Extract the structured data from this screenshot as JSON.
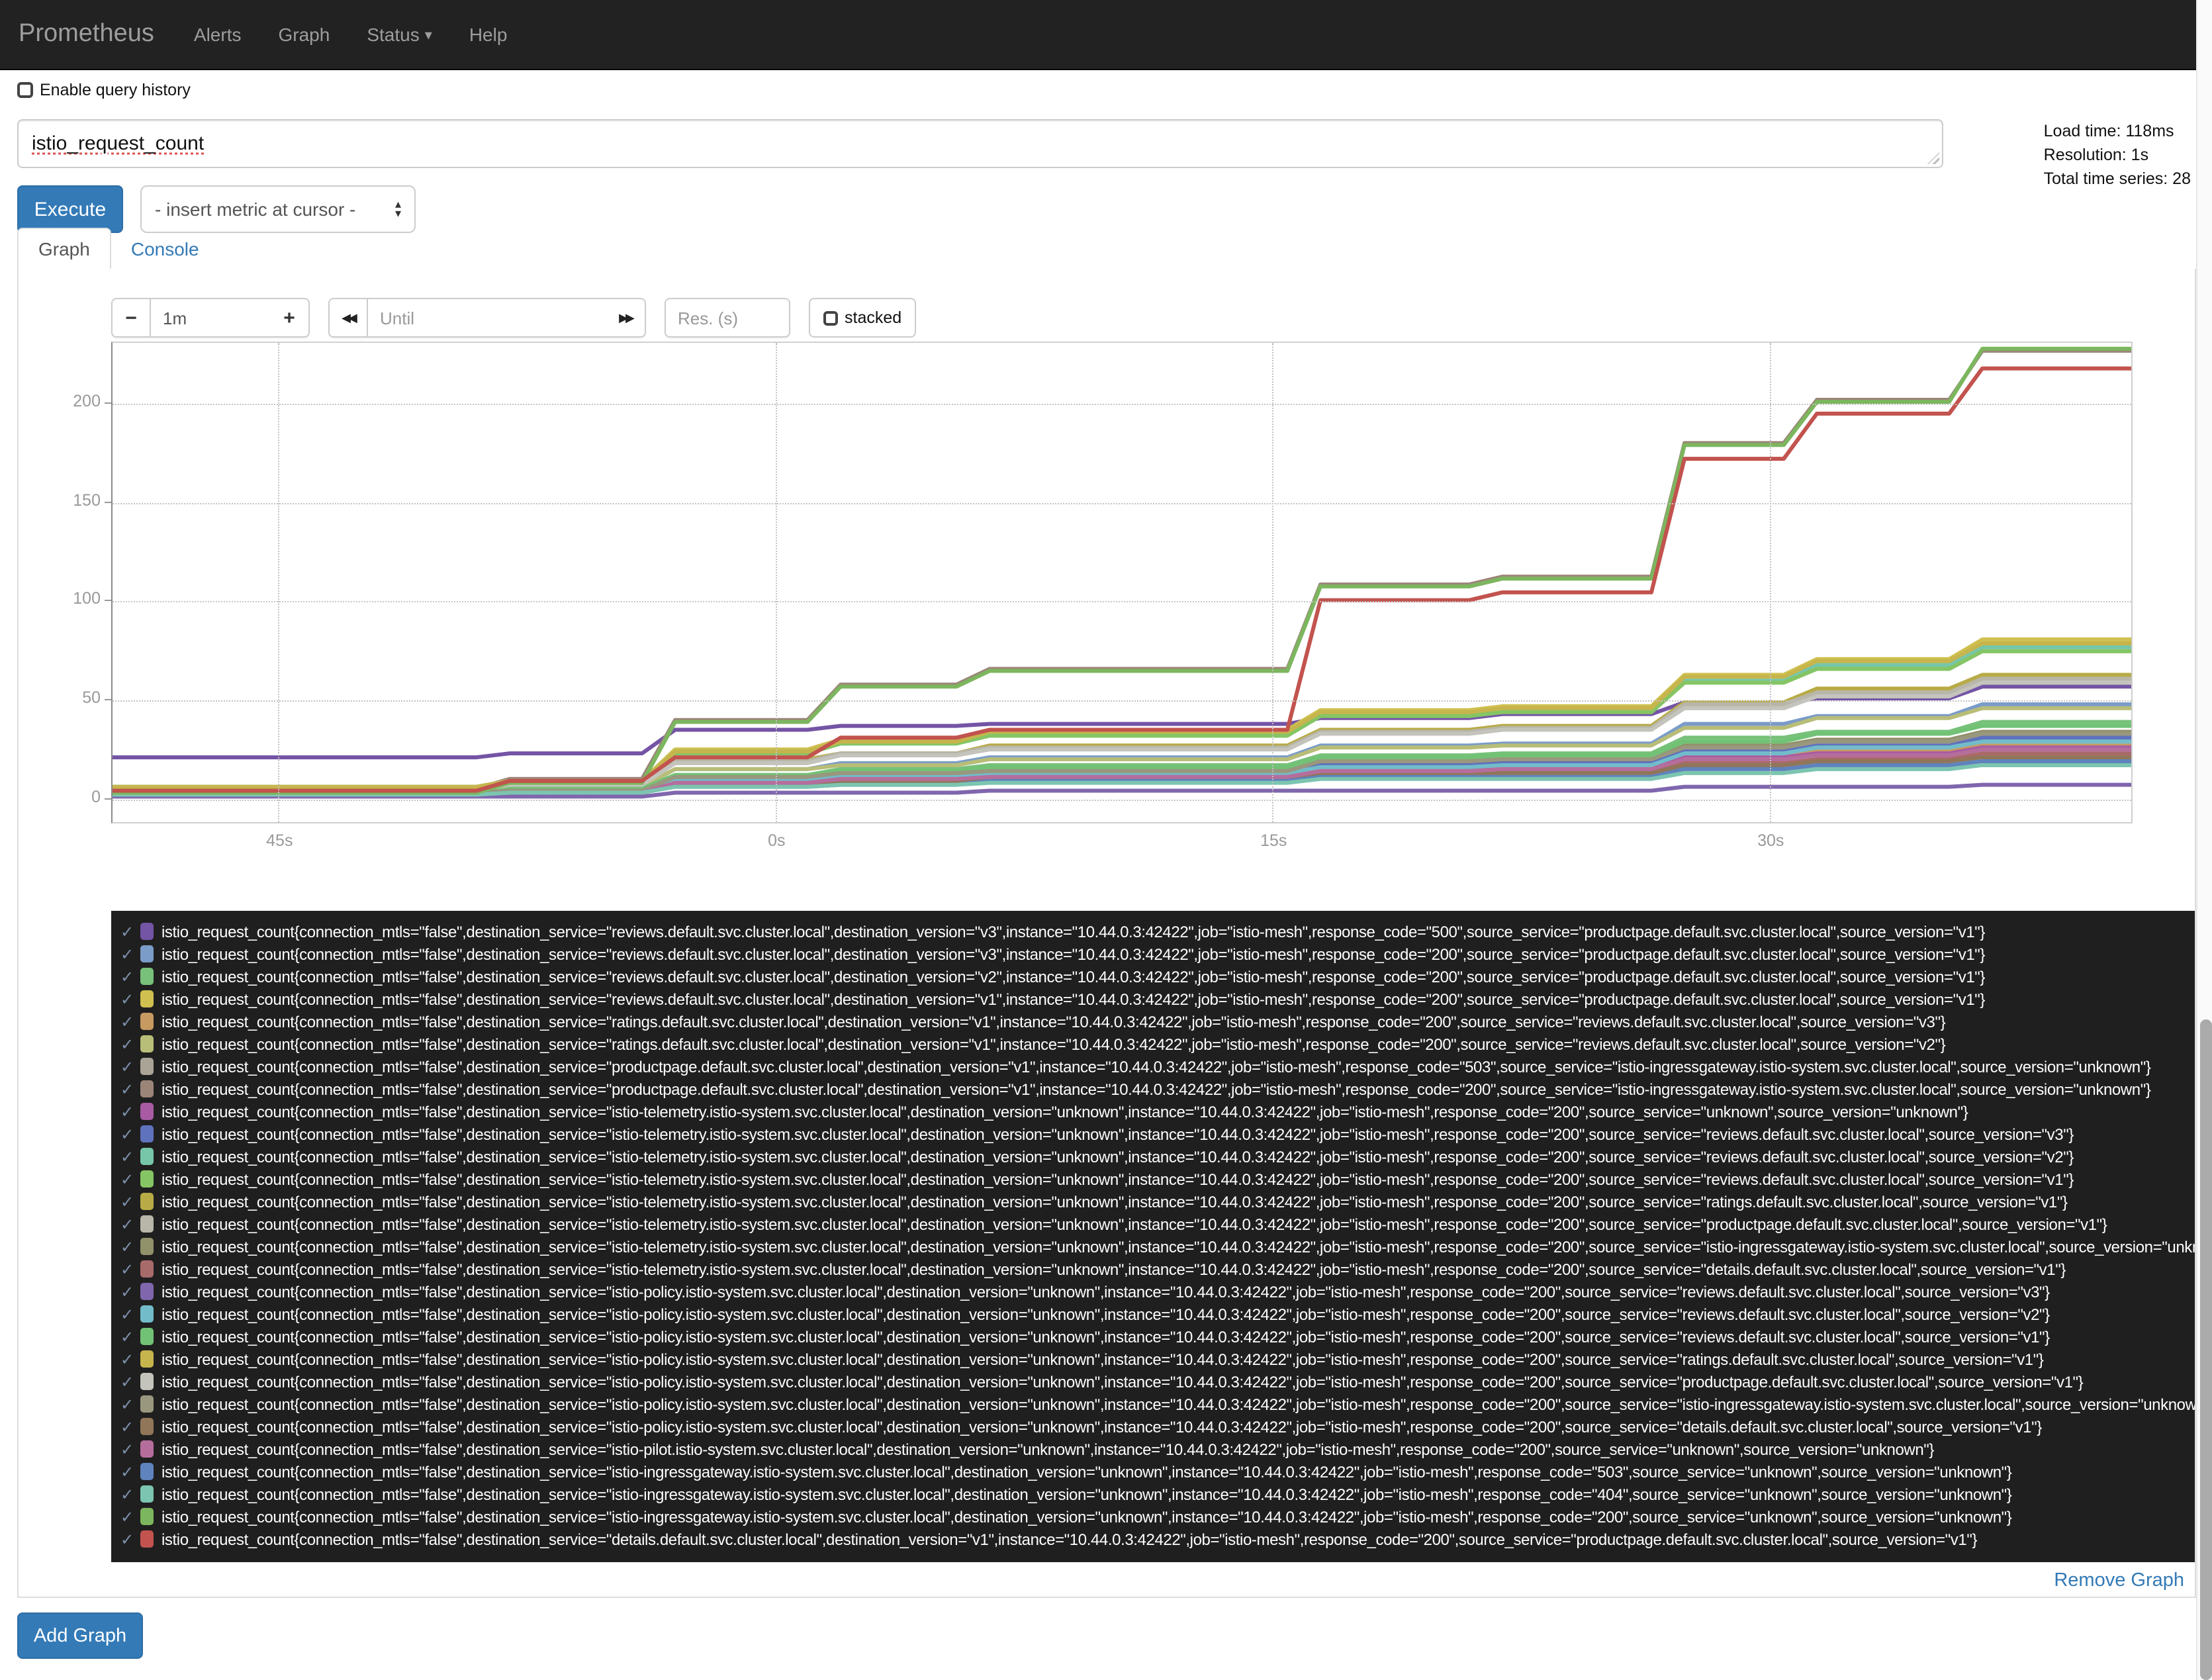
{
  "navbar": {
    "brand": "Prometheus",
    "items": [
      {
        "label": "Alerts"
      },
      {
        "label": "Graph"
      },
      {
        "label": "Status"
      },
      {
        "label": "Help"
      }
    ]
  },
  "icons": {
    "status_caret": "▾",
    "select_up": "▴",
    "select_down": "▾",
    "rewind": "◀◀",
    "forward": "▶▶",
    "check": "✓"
  },
  "query": {
    "history_label": "Enable query history",
    "value": "istio_request_count",
    "stats": [
      "Load time: 118ms",
      "Resolution: 1s",
      "Total time series: 28"
    ],
    "execute_label": "Execute",
    "metric_select_value": "- insert metric at cursor -"
  },
  "tabs": [
    {
      "label": "Graph",
      "active": true
    },
    {
      "label": "Console",
      "active": false
    }
  ],
  "controls": {
    "minus_label": "−",
    "duration_value": "1m",
    "plus_label": "+",
    "until_placeholder": "Until",
    "res_placeholder": "Res. (s)",
    "stacked_label": "stacked"
  },
  "footer": {
    "remove_graph": "Remove Graph",
    "add_graph": "Add Graph"
  },
  "chart_data": {
    "type": "line",
    "title": "",
    "x_ticks": [
      "45s",
      "0s",
      "15s",
      "30s"
    ],
    "x_tick_positions": [
      5,
      20,
      35,
      50
    ],
    "x_domain": [
      0,
      61
    ],
    "y_ticks": [
      0,
      50,
      100,
      150,
      200
    ],
    "y_domain": [
      -13,
      231
    ],
    "grid": "dotted",
    "legend_position": "bottom",
    "x_breakpoints": [
      0,
      12,
      17,
      22,
      26.5,
      36.5,
      42,
      47.5,
      51.5,
      56.5,
      61
    ],
    "series": [
      {
        "color": "#7454a5",
        "values": [
          20,
          22,
          34,
          36,
          37,
          40,
          42,
          48,
          50,
          56,
          56
        ],
        "label": "istio_request_count{connection_mtls=\"false\",destination_service=\"reviews.default.svc.cluster.local\",destination_version=\"v3\",instance=\"10.44.0.3:42422\",job=\"istio-mesh\",response_code=\"500\",source_service=\"productpage.default.svc.cluster.local\",source_version=\"v1\"}"
      },
      {
        "color": "#7b9cc9",
        "values": [
          3,
          5,
          14,
          17,
          20,
          26,
          27,
          37,
          41,
          47,
          47
        ],
        "label": "istio_request_count{connection_mtls=\"false\",destination_service=\"reviews.default.svc.cluster.local\",destination_version=\"v3\",instance=\"10.44.0.3:42422\",job=\"istio-mesh\",response_code=\"200\",source_service=\"productpage.default.svc.cluster.local\",source_version=\"v1\"}"
      },
      {
        "color": "#77c17a",
        "values": [
          2,
          4,
          11,
          14,
          16,
          21,
          22,
          30,
          33,
          38,
          38
        ],
        "label": "istio_request_count{connection_mtls=\"false\",destination_service=\"reviews.default.svc.cluster.local\",destination_version=\"v2\",instance=\"10.44.0.3:42422\",job=\"istio-mesh\",response_code=\"200\",source_service=\"productpage.default.svc.cluster.local\",source_version=\"v1\"}"
      },
      {
        "color": "#cfc04f",
        "values": [
          5,
          8,
          24,
          29,
          34,
          44,
          46,
          62,
          70,
          80,
          80
        ],
        "label": "istio_request_count{connection_mtls=\"false\",destination_service=\"reviews.default.svc.cluster.local\",destination_version=\"v1\",instance=\"10.44.0.3:42422\",job=\"istio-mesh\",response_code=\"200\",source_service=\"productpage.default.svc.cluster.local\",source_version=\"v1\"}"
      },
      {
        "color": "#c79a62",
        "values": [
          2,
          3,
          8,
          9,
          11,
          14,
          15,
          20,
          23,
          26,
          26
        ],
        "label": "istio_request_count{connection_mtls=\"false\",destination_service=\"ratings.default.svc.cluster.local\",destination_version=\"v1\",instance=\"10.44.0.3:42422\",job=\"istio-mesh\",response_code=\"200\",source_service=\"reviews.default.svc.cluster.local\",source_version=\"v3\"}"
      },
      {
        "color": "#b8bd78",
        "values": [
          3,
          5,
          14,
          16,
          19,
          25,
          26,
          35,
          40,
          45,
          45
        ],
        "label": "istio_request_count{connection_mtls=\"false\",destination_service=\"ratings.default.svc.cluster.local\",destination_version=\"v1\",instance=\"10.44.0.3:42422\",job=\"istio-mesh\",response_code=\"200\",source_service=\"reviews.default.svc.cluster.local\",source_version=\"v2\"}"
      },
      {
        "color": "#a9a496",
        "values": [
          1,
          2,
          6,
          8,
          9,
          12,
          12,
          16,
          18,
          21,
          21
        ],
        "label": "istio_request_count{connection_mtls=\"false\",destination_service=\"productpage.default.svc.cluster.local\",destination_version=\"v1\",instance=\"10.44.0.3:42422\",job=\"istio-mesh\",response_code=\"503\",source_service=\"istio-ingressgateway.istio-system.svc.cluster.local\",source_version=\"unknown\"}"
      },
      {
        "color": "#9b8579",
        "values": [
          4,
          9,
          39,
          57,
          65,
          108,
          112,
          180,
          202,
          227,
          227
        ],
        "label": "istio_request_count{connection_mtls=\"false\",destination_service=\"productpage.default.svc.cluster.local\",destination_version=\"v1\",instance=\"10.44.0.3:42422\",job=\"istio-mesh\",response_code=\"200\",source_service=\"istio-ingressgateway.istio-system.svc.cluster.local\",source_version=\"unknown\"}"
      },
      {
        "color": "#a85ba3",
        "values": [
          2,
          3,
          8,
          9,
          11,
          14,
          15,
          20,
          22,
          25,
          25
        ],
        "label": "istio_request_count{connection_mtls=\"false\",destination_service=\"istio-telemetry.istio-system.svc.cluster.local\",destination_version=\"unknown\",instance=\"10.44.0.3:42422\",job=\"istio-mesh\",response_code=\"200\",source_service=\"unknown\",source_version=\"unknown\"}"
      },
      {
        "color": "#5f72bd",
        "values": [
          2,
          3,
          9,
          11,
          13,
          17,
          17,
          23,
          26,
          30,
          30
        ],
        "label": "istio_request_count{connection_mtls=\"false\",destination_service=\"istio-telemetry.istio-system.svc.cluster.local\",destination_version=\"unknown\",instance=\"10.44.0.3:42422\",job=\"istio-mesh\",response_code=\"200\",source_service=\"reviews.default.svc.cluster.local\",source_version=\"v3\"}"
      },
      {
        "color": "#77c6a9",
        "values": [
          5,
          8,
          23,
          27,
          32,
          42,
          44,
          59,
          67,
          76,
          76
        ],
        "label": "istio_request_count{connection_mtls=\"false\",destination_service=\"istio-telemetry.istio-system.svc.cluster.local\",destination_version=\"unknown\",instance=\"10.44.0.3:42422\",job=\"istio-mesh\",response_code=\"200\",source_service=\"reviews.default.svc.cluster.local\",source_version=\"v2\"}"
      },
      {
        "color": "#85c564",
        "values": [
          4,
          7,
          22,
          27,
          31,
          41,
          43,
          58,
          65,
          74,
          74
        ],
        "label": "istio_request_count{connection_mtls=\"false\",destination_service=\"istio-telemetry.istio-system.svc.cluster.local\",destination_version=\"unknown\",instance=\"10.44.0.3:42422\",job=\"istio-mesh\",response_code=\"200\",source_service=\"reviews.default.svc.cluster.local\",source_version=\"v1\"}"
      },
      {
        "color": "#b8ab47",
        "values": [
          4,
          6,
          19,
          22,
          26,
          34,
          36,
          48,
          55,
          62,
          62
        ],
        "label": "istio_request_count{connection_mtls=\"false\",destination_service=\"istio-telemetry.istio-system.svc.cluster.local\",destination_version=\"unknown\",instance=\"10.44.0.3:42422\",job=\"istio-mesh\",response_code=\"200\",source_service=\"ratings.default.svc.cluster.local\",source_version=\"v1\"}"
      },
      {
        "color": "#b8b6a8",
        "values": [
          4,
          6,
          18,
          22,
          25,
          33,
          35,
          47,
          53,
          60,
          60
        ],
        "label": "istio_request_count{connection_mtls=\"false\",destination_service=\"istio-telemetry.istio-system.svc.cluster.local\",destination_version=\"unknown\",instance=\"10.44.0.3:42422\",job=\"istio-mesh\",response_code=\"200\",source_service=\"productpage.default.svc.cluster.local\",source_version=\"v1\"}"
      },
      {
        "color": "#91916a",
        "values": [
          2,
          3,
          10,
          12,
          14,
          18,
          19,
          26,
          29,
          33,
          33
        ],
        "label": "istio_request_count{connection_mtls=\"false\",destination_service=\"istio-telemetry.istio-system.svc.cluster.local\",destination_version=\"unknown\",instance=\"10.44.0.3:42422\",job=\"istio-mesh\",response_code=\"200\",source_service=\"istio-ingressgateway.istio-system.svc.cluster.local\",source_version=\"unknown\"}"
      },
      {
        "color": "#a96a6a",
        "values": [
          1,
          2,
          7,
          8,
          9,
          12,
          13,
          17,
          19,
          22,
          22
        ],
        "label": "istio_request_count{connection_mtls=\"false\",destination_service=\"istio-telemetry.istio-system.svc.cluster.local\",destination_version=\"unknown\",instance=\"10.44.0.3:42422\",job=\"istio-mesh\",response_code=\"200\",source_service=\"details.default.svc.cluster.local\",source_version=\"v1\"}"
      },
      {
        "color": "#7f66ad",
        "values": [
          0,
          0,
          2,
          2,
          3,
          3,
          3,
          5,
          5,
          6,
          6
        ],
        "label": "istio_request_count{connection_mtls=\"false\",destination_service=\"istio-policy.istio-system.svc.cluster.local\",destination_version=\"unknown\",instance=\"10.44.0.3:42422\",job=\"istio-mesh\",response_code=\"200\",source_service=\"reviews.default.svc.cluster.local\",source_version=\"v3\"}"
      },
      {
        "color": "#72bcca",
        "values": [
          2,
          3,
          8,
          10,
          12,
          15,
          16,
          22,
          25,
          28,
          28
        ],
        "label": "istio_request_count{connection_mtls=\"false\",destination_service=\"istio-policy.istio-system.svc.cluster.local\",destination_version=\"unknown\",instance=\"10.44.0.3:42422\",job=\"istio-mesh\",response_code=\"200\",source_service=\"reviews.default.svc.cluster.local\",source_version=\"v2\"}"
      },
      {
        "color": "#72c276",
        "values": [
          2,
          4,
          11,
          13,
          15,
          20,
          21,
          28,
          32,
          36,
          36
        ],
        "label": "istio_request_count{connection_mtls=\"false\",destination_service=\"istio-policy.istio-system.svc.cluster.local\",destination_version=\"unknown\",instance=\"10.44.0.3:42422\",job=\"istio-mesh\",response_code=\"200\",source_service=\"reviews.default.svc.cluster.local\",source_version=\"v1\"}"
      },
      {
        "color": "#c6b54d",
        "values": [
          5,
          8,
          23,
          28,
          33,
          43,
          45,
          61,
          69,
          78,
          78
        ],
        "label": "istio_request_count{connection_mtls=\"false\",destination_service=\"istio-policy.istio-system.svc.cluster.local\",destination_version=\"unknown\",instance=\"10.44.0.3:42422\",job=\"istio-mesh\",response_code=\"200\",source_service=\"ratings.default.svc.cluster.local\",source_version=\"v1\"}"
      },
      {
        "color": "#c4c4bd",
        "values": [
          3,
          6,
          17,
          21,
          24,
          32,
          34,
          45,
          51,
          58,
          58
        ],
        "label": "istio_request_count{connection_mtls=\"false\",destination_service=\"istio-policy.istio-system.svc.cluster.local\",destination_version=\"unknown\",instance=\"10.44.0.3:42422\",job=\"istio-mesh\",response_code=\"200\",source_service=\"productpage.default.svc.cluster.local\",source_version=\"v1\"}"
      },
      {
        "color": "#99977e",
        "values": [
          2,
          3,
          10,
          12,
          13,
          18,
          19,
          25,
          28,
          32,
          32
        ],
        "label": "istio_request_count{connection_mtls=\"false\",destination_service=\"istio-policy.istio-system.svc.cluster.local\",destination_version=\"unknown\",instance=\"10.44.0.3:42422\",job=\"istio-mesh\",response_code=\"200\",source_service=\"istio-ingressgateway.istio-system.svc.cluster.local\",source_version=\"unknown\"}"
      },
      {
        "color": "#91765a",
        "values": [
          1,
          2,
          6,
          7,
          8,
          11,
          12,
          16,
          18,
          20,
          20
        ],
        "label": "istio_request_count{connection_mtls=\"false\",destination_service=\"istio-policy.istio-system.svc.cluster.local\",destination_version=\"unknown\",instance=\"10.44.0.3:42422\",job=\"istio-mesh\",response_code=\"200\",source_service=\"details.default.svc.cluster.local\",source_version=\"v1\"}"
      },
      {
        "color": "#b56e9c",
        "values": [
          1,
          2,
          7,
          9,
          10,
          13,
          14,
          19,
          21,
          24,
          24
        ],
        "label": "istio_request_count{connection_mtls=\"false\",destination_service=\"istio-pilot.istio-system.svc.cluster.local\",destination_version=\"unknown\",instance=\"10.44.0.3:42422\",job=\"istio-mesh\",response_code=\"200\",source_service=\"unknown\",source_version=\"unknown\"}"
      },
      {
        "color": "#5f83bd",
        "values": [
          1,
          2,
          5,
          6,
          8,
          10,
          10,
          14,
          16,
          18,
          18
        ],
        "label": "istio_request_count{connection_mtls=\"false\",destination_service=\"istio-ingressgateway.istio-system.svc.cluster.local\",destination_version=\"unknown\",instance=\"10.44.0.3:42422\",job=\"istio-mesh\",response_code=\"503\",source_service=\"unknown\",source_version=\"unknown\"}"
      },
      {
        "color": "#7cc5b0",
        "values": [
          1,
          2,
          5,
          6,
          7,
          9,
          9,
          12,
          14,
          16,
          16
        ],
        "label": "istio_request_count{connection_mtls=\"false\",destination_service=\"istio-ingressgateway.istio-system.svc.cluster.local\",destination_version=\"unknown\",instance=\"10.44.0.3:42422\",job=\"istio-mesh\",response_code=\"404\",source_service=\"unknown\",source_version=\"unknown\"}"
      },
      {
        "color": "#7cb65e",
        "values": [
          2,
          7,
          38,
          56,
          64,
          107,
          111,
          179,
          201,
          228,
          228
        ],
        "label": "istio_request_count{connection_mtls=\"false\",destination_service=\"istio-ingressgateway.istio-system.svc.cluster.local\",destination_version=\"unknown\",instance=\"10.44.0.3:42422\",job=\"istio-mesh\",response_code=\"200\",source_service=\"unknown\",source_version=\"unknown\"}"
      },
      {
        "color": "#c2534e",
        "values": [
          3,
          8,
          20,
          30,
          34,
          100,
          104,
          172,
          195,
          218,
          218
        ],
        "label": "istio_request_count{connection_mtls=\"false\",destination_service=\"details.default.svc.cluster.local\",destination_version=\"v1\",instance=\"10.44.0.3:42422\",job=\"istio-mesh\",response_code=\"200\",source_service=\"productpage.default.svc.cluster.local\",source_version=\"v1\"}"
      }
    ]
  }
}
